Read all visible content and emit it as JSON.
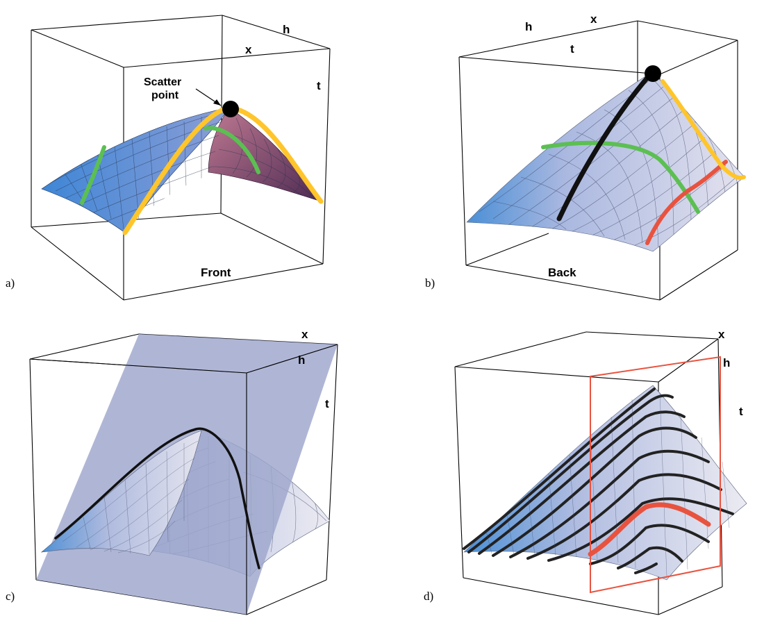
{
  "panels": [
    {
      "id": "a",
      "label": "a)",
      "axes": {
        "h": "h",
        "x": "x",
        "t": "t"
      },
      "caption": "Front",
      "annotation": {
        "line1": "Scatter",
        "line2": "point"
      }
    },
    {
      "id": "b",
      "label": "b)",
      "axes": {
        "h": "h",
        "x": "x",
        "t": "t"
      },
      "caption": "Back"
    },
    {
      "id": "c",
      "label": "c)",
      "axes": {
        "h": "h",
        "x": "x",
        "t": "t"
      }
    },
    {
      "id": "d",
      "label": "d)",
      "axes": {
        "h": "h",
        "x": "x",
        "t": "t"
      }
    }
  ],
  "colors": {
    "yellow_curve": "#ffc52a",
    "green_curve": "#5cbf52",
    "red_curve": "#e8533f",
    "black_curve": "#111111",
    "surface_light": "#c9cde6",
    "surface_blue": "#5b8fd1",
    "plane": "#9ea6cc",
    "purple": "#9a5b7e"
  }
}
